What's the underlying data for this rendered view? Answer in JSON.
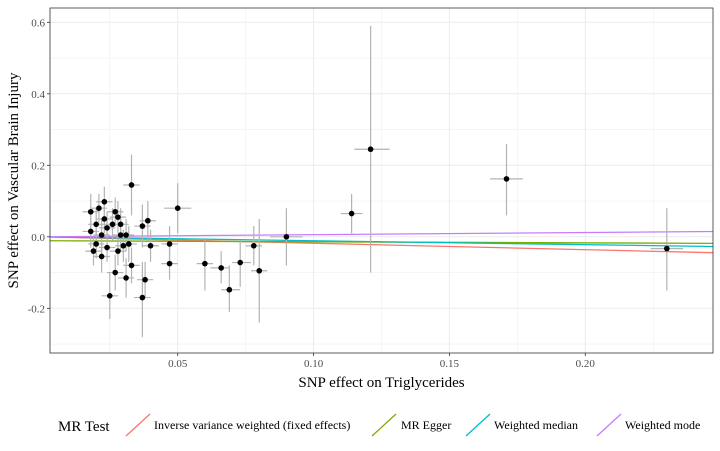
{
  "chart_data": {
    "type": "scatter",
    "xlabel": "SNP effect on Triglycerides",
    "ylabel": "SNP effect on Vascular Brain Injury",
    "xlim": [
      0.003,
      0.247
    ],
    "ylim": [
      -0.325,
      0.64
    ],
    "x_ticks": [
      {
        "value": 0.05,
        "label": "0.05"
      },
      {
        "value": 0.1,
        "label": "0.10"
      },
      {
        "value": 0.15,
        "label": "0.15"
      },
      {
        "value": 0.2,
        "label": "0.20"
      }
    ],
    "y_ticks": [
      {
        "value": -0.2,
        "label": "-0.2"
      },
      {
        "value": 0.0,
        "label": "0.0"
      },
      {
        "value": 0.2,
        "label": "0.2"
      },
      {
        "value": 0.4,
        "label": "0.4"
      },
      {
        "value": 0.6,
        "label": "0.6"
      }
    ],
    "grid": true,
    "points": [
      {
        "x": 0.018,
        "y": 0.07,
        "ylo": 0.02,
        "yhi": 0.12,
        "xlo": 0.015,
        "xhi": 0.021
      },
      {
        "x": 0.02,
        "y": 0.035,
        "ylo": -0.01,
        "yhi": 0.08,
        "xlo": 0.017,
        "xhi": 0.023
      },
      {
        "x": 0.018,
        "y": 0.015,
        "ylo": -0.03,
        "yhi": 0.06,
        "xlo": 0.015,
        "xhi": 0.021
      },
      {
        "x": 0.019,
        "y": -0.04,
        "ylo": -0.08,
        "yhi": 0.0,
        "xlo": 0.016,
        "xhi": 0.022
      },
      {
        "x": 0.02,
        "y": -0.02,
        "ylo": -0.06,
        "yhi": 0.02,
        "xlo": 0.017,
        "xhi": 0.023
      },
      {
        "x": 0.021,
        "y": 0.08,
        "ylo": 0.04,
        "yhi": 0.12,
        "xlo": 0.018,
        "xhi": 0.024
      },
      {
        "x": 0.022,
        "y": -0.055,
        "ylo": -0.1,
        "yhi": -0.01,
        "xlo": 0.019,
        "xhi": 0.025
      },
      {
        "x": 0.022,
        "y": 0.005,
        "ylo": -0.04,
        "yhi": 0.05,
        "xlo": 0.019,
        "xhi": 0.025
      },
      {
        "x": 0.023,
        "y": 0.05,
        "ylo": 0.01,
        "yhi": 0.09,
        "xlo": 0.02,
        "xhi": 0.026
      },
      {
        "x": 0.023,
        "y": 0.098,
        "ylo": 0.06,
        "yhi": 0.14,
        "xlo": 0.02,
        "xhi": 0.026
      },
      {
        "x": 0.024,
        "y": -0.03,
        "ylo": -0.07,
        "yhi": 0.01,
        "xlo": 0.021,
        "xhi": 0.027
      },
      {
        "x": 0.024,
        "y": 0.025,
        "ylo": -0.02,
        "yhi": 0.07,
        "xlo": 0.021,
        "xhi": 0.027
      },
      {
        "x": 0.025,
        "y": -0.165,
        "ylo": -0.23,
        "yhi": -0.1,
        "xlo": 0.022,
        "xhi": 0.028
      },
      {
        "x": 0.026,
        "y": 0.035,
        "ylo": -0.01,
        "yhi": 0.08,
        "xlo": 0.023,
        "xhi": 0.029
      },
      {
        "x": 0.027,
        "y": 0.07,
        "ylo": 0.03,
        "yhi": 0.11,
        "xlo": 0.024,
        "xhi": 0.03
      },
      {
        "x": 0.027,
        "y": -0.1,
        "ylo": -0.15,
        "yhi": -0.05,
        "xlo": 0.024,
        "xhi": 0.03
      },
      {
        "x": 0.028,
        "y": 0.055,
        "ylo": 0.01,
        "yhi": 0.1,
        "xlo": 0.025,
        "xhi": 0.031
      },
      {
        "x": 0.028,
        "y": -0.04,
        "ylo": -0.08,
        "yhi": 0.0,
        "xlo": 0.025,
        "xhi": 0.031
      },
      {
        "x": 0.029,
        "y": 0.035,
        "ylo": -0.01,
        "yhi": 0.08,
        "xlo": 0.026,
        "xhi": 0.032
      },
      {
        "x": 0.029,
        "y": 0.005,
        "ylo": -0.04,
        "yhi": 0.05,
        "xlo": 0.026,
        "xhi": 0.032
      },
      {
        "x": 0.03,
        "y": -0.025,
        "ylo": -0.07,
        "yhi": 0.02,
        "xlo": 0.027,
        "xhi": 0.033
      },
      {
        "x": 0.031,
        "y": 0.005,
        "ylo": -0.04,
        "yhi": 0.05,
        "xlo": 0.028,
        "xhi": 0.034
      },
      {
        "x": 0.031,
        "y": -0.115,
        "ylo": -0.17,
        "yhi": -0.06,
        "xlo": 0.028,
        "xhi": 0.034
      },
      {
        "x": 0.032,
        "y": -0.02,
        "ylo": -0.07,
        "yhi": 0.03,
        "xlo": 0.029,
        "xhi": 0.035
      },
      {
        "x": 0.033,
        "y": 0.145,
        "ylo": 0.06,
        "yhi": 0.23,
        "xlo": 0.03,
        "xhi": 0.036
      },
      {
        "x": 0.033,
        "y": -0.08,
        "ylo": -0.13,
        "yhi": -0.03,
        "xlo": 0.03,
        "xhi": 0.036
      },
      {
        "x": 0.037,
        "y": -0.17,
        "ylo": -0.28,
        "yhi": -0.07,
        "xlo": 0.034,
        "xhi": 0.04
      },
      {
        "x": 0.037,
        "y": 0.03,
        "ylo": -0.03,
        "yhi": 0.09,
        "xlo": 0.034,
        "xhi": 0.04
      },
      {
        "x": 0.038,
        "y": -0.12,
        "ylo": -0.17,
        "yhi": -0.07,
        "xlo": 0.035,
        "xhi": 0.041
      },
      {
        "x": 0.039,
        "y": 0.045,
        "ylo": -0.01,
        "yhi": 0.1,
        "xlo": 0.036,
        "xhi": 0.042
      },
      {
        "x": 0.04,
        "y": -0.025,
        "ylo": -0.07,
        "yhi": 0.02,
        "xlo": 0.037,
        "xhi": 0.043
      },
      {
        "x": 0.047,
        "y": -0.02,
        "ylo": -0.07,
        "yhi": 0.03,
        "xlo": 0.044,
        "xhi": 0.05
      },
      {
        "x": 0.047,
        "y": -0.075,
        "ylo": -0.12,
        "yhi": -0.03,
        "xlo": 0.044,
        "xhi": 0.05
      },
      {
        "x": 0.05,
        "y": 0.08,
        "ylo": 0.01,
        "yhi": 0.15,
        "xlo": 0.045,
        "xhi": 0.055
      },
      {
        "x": 0.06,
        "y": -0.075,
        "ylo": -0.15,
        "yhi": -0.01,
        "xlo": 0.057,
        "xhi": 0.063
      },
      {
        "x": 0.066,
        "y": -0.087,
        "ylo": -0.13,
        "yhi": -0.04,
        "xlo": 0.062,
        "xhi": 0.069
      },
      {
        "x": 0.069,
        "y": -0.148,
        "ylo": -0.21,
        "yhi": -0.08,
        "xlo": 0.066,
        "xhi": 0.073
      },
      {
        "x": 0.073,
        "y": -0.072,
        "ylo": -0.14,
        "yhi": -0.01,
        "xlo": 0.07,
        "xhi": 0.077
      },
      {
        "x": 0.078,
        "y": -0.025,
        "ylo": -0.08,
        "yhi": 0.03,
        "xlo": 0.075,
        "xhi": 0.081
      },
      {
        "x": 0.08,
        "y": -0.095,
        "ylo": -0.24,
        "yhi": 0.05,
        "xlo": 0.077,
        "xhi": 0.083
      },
      {
        "x": 0.09,
        "y": 0.0,
        "ylo": -0.08,
        "yhi": 0.08,
        "xlo": 0.084,
        "xhi": 0.096
      },
      {
        "x": 0.114,
        "y": 0.065,
        "ylo": 0.01,
        "yhi": 0.12,
        "xlo": 0.11,
        "xhi": 0.118
      },
      {
        "x": 0.121,
        "y": 0.245,
        "ylo": -0.1,
        "yhi": 0.59,
        "xlo": 0.115,
        "xhi": 0.128
      },
      {
        "x": 0.171,
        "y": 0.162,
        "ylo": 0.06,
        "yhi": 0.26,
        "xlo": 0.165,
        "xhi": 0.177
      },
      {
        "x": 0.23,
        "y": -0.033,
        "ylo": -0.15,
        "yhi": 0.08,
        "xlo": 0.224,
        "xhi": 0.236
      }
    ],
    "lines": [
      {
        "name": "Inverse variance weighted (fixed effects)",
        "color": "#f8766d",
        "slope": -0.18,
        "intercept": 0.0
      },
      {
        "name": "MR Egger",
        "color": "#7cae00",
        "slope": -0.03,
        "intercept": -0.011
      },
      {
        "name": "Weighted median",
        "color": "#00bfc4",
        "slope": -0.11,
        "intercept": 0.0
      },
      {
        "name": "Weighted mode",
        "color": "#c77cff",
        "slope": 0.06,
        "intercept": 0.0
      }
    ]
  },
  "legend": {
    "title": "MR Test",
    "items": [
      {
        "label": "Inverse variance weighted (fixed effects)",
        "color": "#f8766d"
      },
      {
        "label": "MR Egger",
        "color": "#7cae00"
      },
      {
        "label": "Weighted median",
        "color": "#00bfc4"
      },
      {
        "label": "Weighted mode",
        "color": "#c77cff"
      }
    ]
  }
}
